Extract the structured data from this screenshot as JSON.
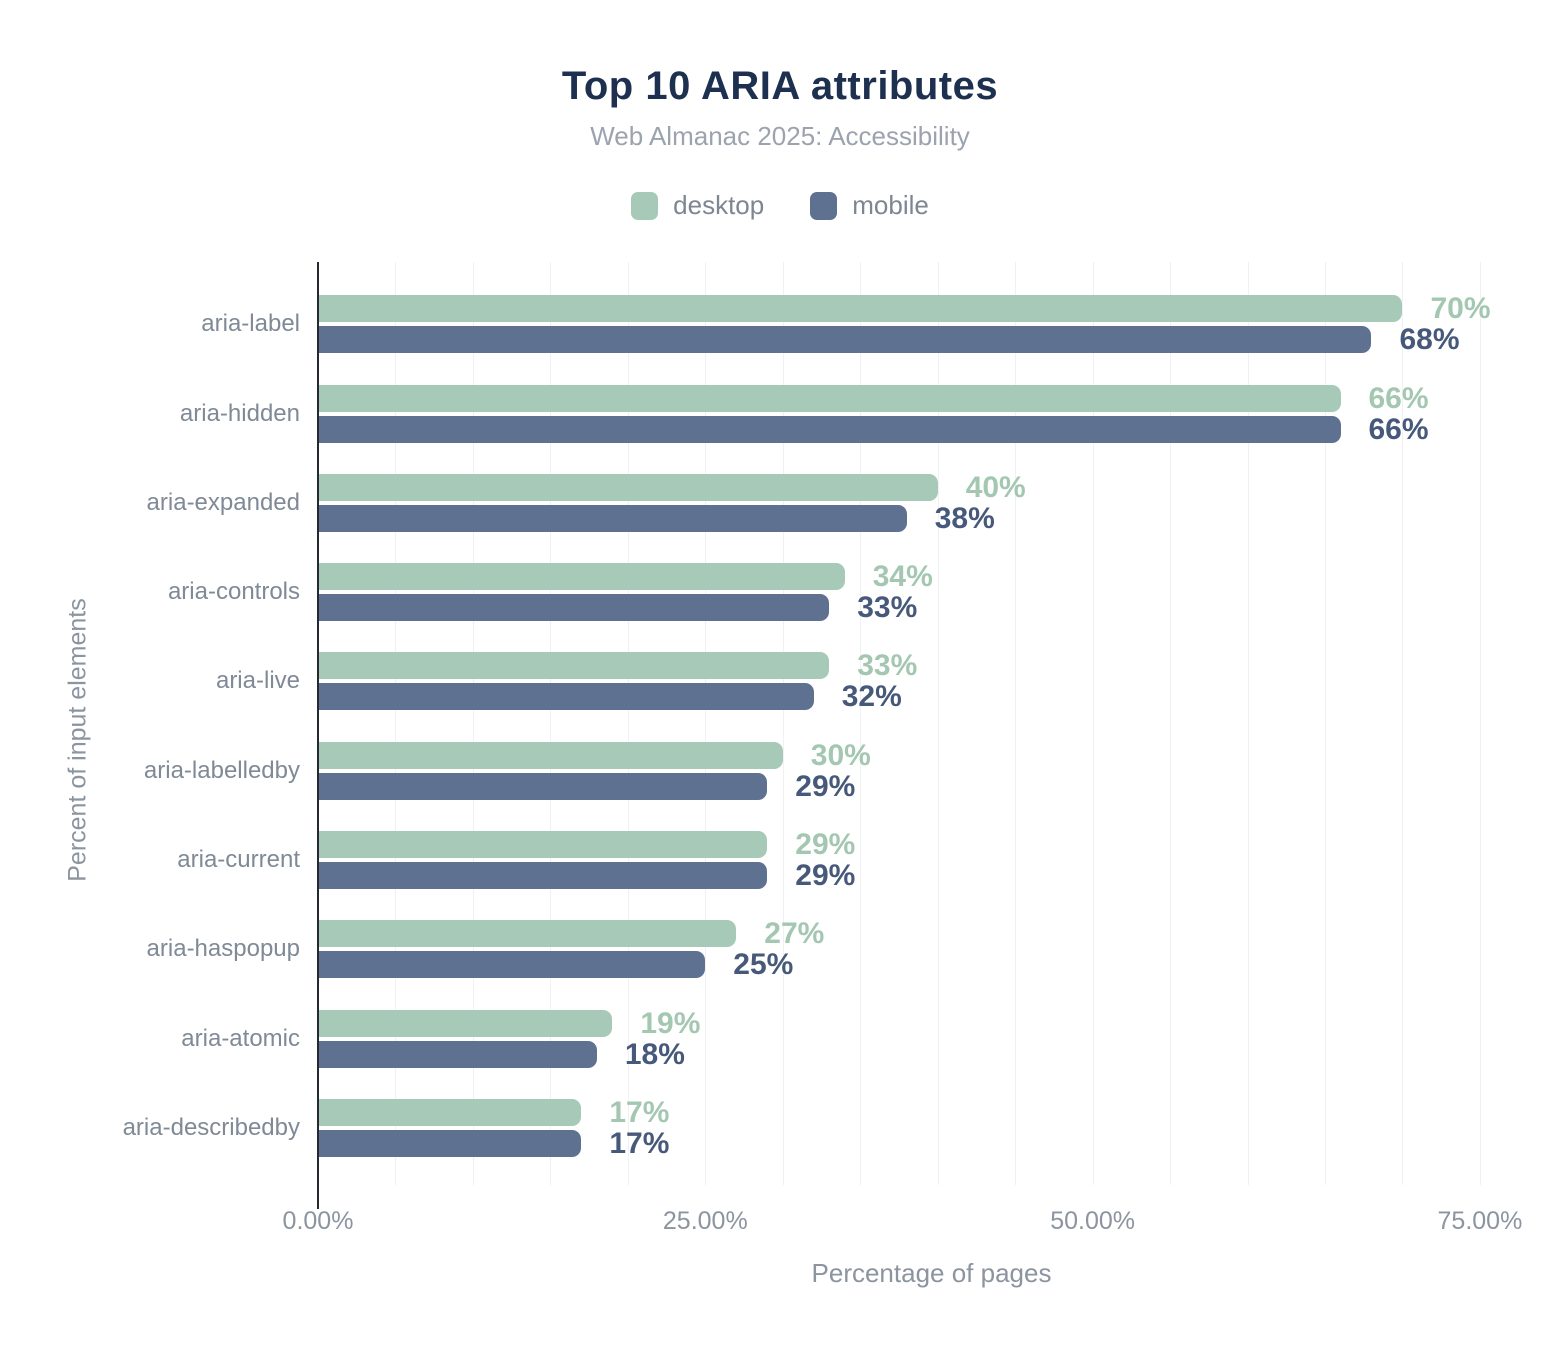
{
  "header": {
    "title": "Top 10 ARIA attributes",
    "subtitle": "Web Almanac 2025: Accessibility"
  },
  "chart_data": {
    "type": "bar",
    "orientation": "horizontal",
    "title": "Top 10 ARIA attributes",
    "subtitle": "Web Almanac 2025: Accessibility",
    "categories": [
      "aria-label",
      "aria-hidden",
      "aria-expanded",
      "aria-controls",
      "aria-live",
      "aria-labelledby",
      "aria-current",
      "aria-haspopup",
      "aria-atomic",
      "aria-describedby"
    ],
    "series": [
      {
        "name": "desktop",
        "color": "#a7c9b7",
        "label_color": "#a3c7b1",
        "values": [
          70,
          66,
          40,
          34,
          33,
          30,
          29,
          27,
          19,
          17
        ],
        "labels": [
          "70%",
          "66%",
          "40%",
          "34%",
          "33%",
          "30%",
          "29%",
          "27%",
          "19%",
          "17%"
        ]
      },
      {
        "name": "mobile",
        "color": "#5e7190",
        "label_color": "#47597a",
        "values": [
          68,
          66,
          38,
          33,
          32,
          29,
          29,
          25,
          18,
          17
        ],
        "labels": [
          "68%",
          "66%",
          "38%",
          "33%",
          "32%",
          "29%",
          "29%",
          "25%",
          "18%",
          "17%"
        ]
      }
    ],
    "xlabel": "Percentage of pages",
    "ylabel": "Percent of input elements",
    "xlim": [
      0,
      79.2
    ],
    "x_ticks": [
      {
        "value": 0,
        "label": "0.00%"
      },
      {
        "value": 25,
        "label": "25.00%"
      },
      {
        "value": 50,
        "label": "50.00%"
      },
      {
        "value": 75,
        "label": "75.00%"
      }
    ],
    "grid": {
      "minor_step": 5,
      "color": "#f0f1f4",
      "on": true
    },
    "legend_position": "top",
    "value_labels_on": true
  }
}
